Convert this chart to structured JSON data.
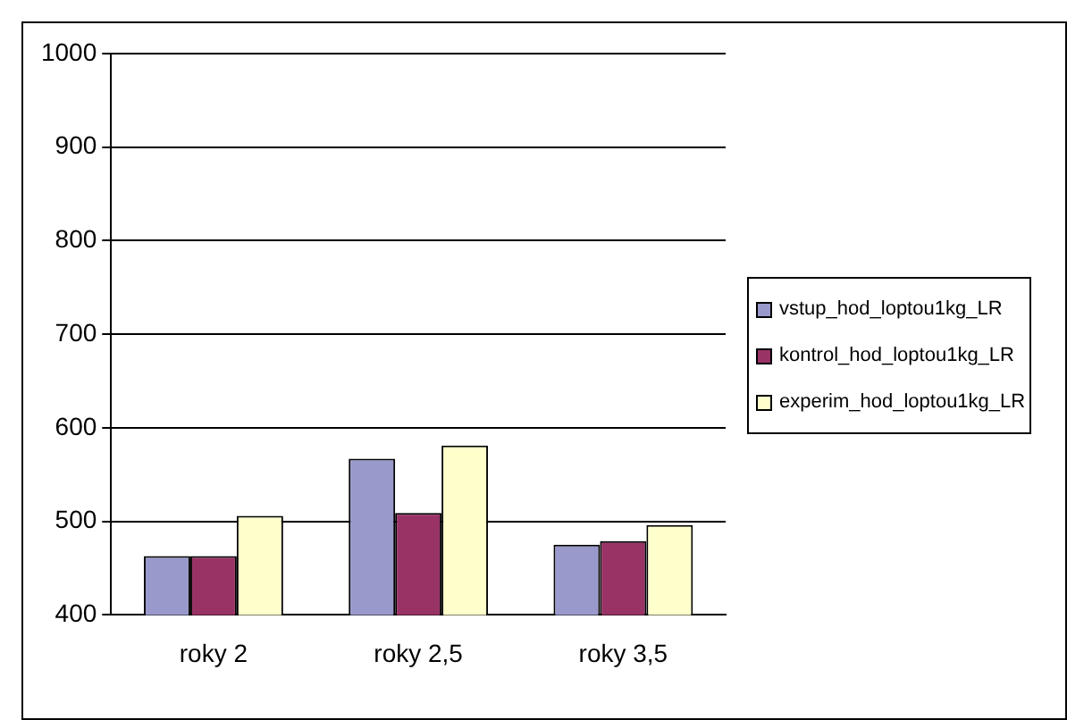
{
  "chart_data": {
    "type": "bar",
    "categories": [
      "roky 2",
      "roky 2,5",
      "roky 3,5"
    ],
    "series": [
      {
        "name": "vstup_hod_loptou1kg_LR",
        "color": "#9999cc",
        "values": [
          463,
          567,
          475
        ]
      },
      {
        "name": "kontrol_hod_loptou1kg_LR",
        "color": "#993366",
        "values": [
          463,
          509,
          479
        ]
      },
      {
        "name": "experim_hod_loptou1kg_LR",
        "color": "#ffffcc",
        "values": [
          506,
          581,
          496
        ]
      }
    ],
    "ylim": [
      400,
      1000
    ],
    "yticks": [
      400,
      500,
      600,
      700,
      800,
      900,
      1000
    ],
    "grid": "y",
    "legend": "right"
  }
}
